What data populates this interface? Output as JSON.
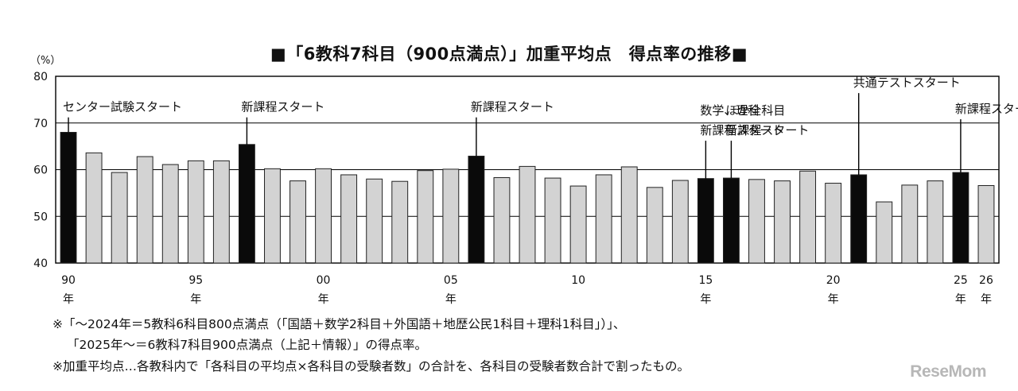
{
  "chart_data": {
    "type": "bar",
    "title": "■「6教科7科目（900点満点）」加重平均点　得点率の推移■",
    "y_unit": "（%）",
    "ylim": [
      40,
      80
    ],
    "y_ticks": [
      40,
      50,
      60,
      70,
      80
    ],
    "grid": true,
    "categories": [
      "90",
      "91",
      "92",
      "93",
      "94",
      "95",
      "96",
      "97",
      "98",
      "99",
      "00",
      "01",
      "02",
      "03",
      "04",
      "05",
      "06",
      "07",
      "08",
      "09",
      "10",
      "11",
      "12",
      "13",
      "14",
      "15",
      "16",
      "17",
      "18",
      "19",
      "20",
      "21",
      "22",
      "23",
      "24",
      "25",
      "26"
    ],
    "x_tick_labels": [
      {
        "category": "90",
        "line1": "90",
        "line2": "年"
      },
      {
        "category": "95",
        "line1": "95",
        "line2": "年"
      },
      {
        "category": "00",
        "line1": "00",
        "line2": "年"
      },
      {
        "category": "05",
        "line1": "05",
        "line2": "年"
      },
      {
        "category": "10",
        "line1": "10",
        "line2": ""
      },
      {
        "category": "15",
        "line1": "15",
        "line2": "年"
      },
      {
        "category": "20",
        "line1": "20",
        "line2": "年"
      },
      {
        "category": "25",
        "line1": "25",
        "line2": "年"
      },
      {
        "category": "26",
        "line1": "26",
        "line2": "年"
      }
    ],
    "values": [
      68.0,
      63.6,
      59.4,
      62.8,
      61.1,
      61.9,
      61.9,
      65.4,
      60.2,
      57.6,
      60.2,
      58.9,
      58.0,
      57.5,
      59.8,
      60.1,
      62.9,
      58.3,
      60.7,
      58.2,
      56.5,
      58.9,
      60.6,
      56.2,
      57.7,
      58.1,
      58.2,
      57.9,
      57.6,
      59.7,
      57.1,
      58.9,
      53.1,
      56.7,
      57.6,
      59.4,
      56.6
    ],
    "highlighted": [
      "90",
      "97",
      "06",
      "15",
      "16",
      "21",
      "25"
    ],
    "colors": {
      "highlight": "#0a0a0a",
      "normal": "#d3d3d3",
      "bar_stroke": "#222222"
    },
    "annotations": [
      {
        "category": "90",
        "lines": [
          "センター試験スタート"
        ],
        "value": 71.2
      },
      {
        "category": "97",
        "lines": [
          "新課程スタート"
        ],
        "value": 71.2
      },
      {
        "category": "06",
        "lines": [
          "新課程スタート"
        ],
        "value": 71.2
      },
      {
        "category": "15",
        "lines": [
          "数学、理科",
          "新課程スタート"
        ],
        "value": 66.2
      },
      {
        "category": "16",
        "lines": [
          "ほか全科目",
          "新課程スタート"
        ],
        "value": 66.2
      },
      {
        "category": "21",
        "lines": [
          "共通テストスタート"
        ],
        "value": 76.4
      },
      {
        "category": "25",
        "lines": [
          "新課程スタート"
        ],
        "value": 70.8
      }
    ]
  },
  "notes": {
    "line1": "※「～2024年＝5教科6科目800点満点（「国語＋数学2科目＋外国語＋地歴公民1科目＋理科1科目」）」、",
    "line2": "「2025年～＝6教科7科目900点満点（上記＋情報）」の得点率。",
    "line3": "※加重平均点…各教科内で「各科目の平均点×各科目の受験者数」の合計を、各科目の受験者数合計で割ったもの。"
  },
  "logo": "ReseMom"
}
